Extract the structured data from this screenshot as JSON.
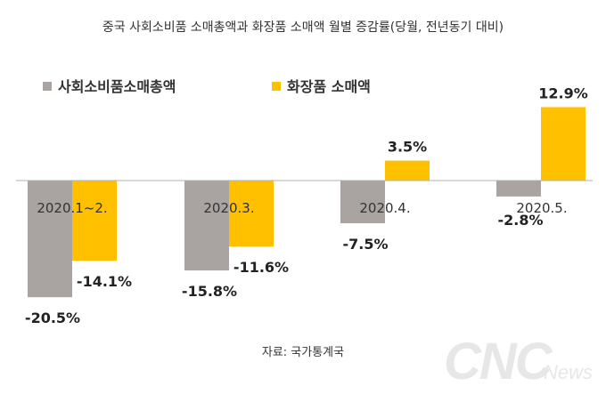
{
  "chart_data": {
    "type": "bar",
    "title": "중국 사회소비품 소매총액과 화장품 소매액 월별 증감률(당월, 전년동기 대비)",
    "categories": [
      "2020.1~2.",
      "2020.3.",
      "2020.4.",
      "2020.5."
    ],
    "series": [
      {
        "name": "사회소비품소매총액",
        "color": "#a9a4a2",
        "values": [
          -20.5,
          -15.8,
          -7.5,
          -2.8
        ],
        "labels": [
          "-20.5%",
          "-15.8%",
          "-7.5%",
          "-2.8%"
        ]
      },
      {
        "name": "화장품 소매액",
        "color": "#ffc000",
        "values": [
          -14.1,
          -11.6,
          3.5,
          12.9
        ],
        "labels": [
          "-14.1%",
          "-11.6%",
          "3.5%",
          "12.9%"
        ]
      }
    ],
    "ylim": [
      -21,
      13
    ],
    "grid": false,
    "legend": "top-left",
    "source": "자료: 국가통계국"
  },
  "watermark": {
    "logo_text": "CNC",
    "sub_text": "News"
  }
}
